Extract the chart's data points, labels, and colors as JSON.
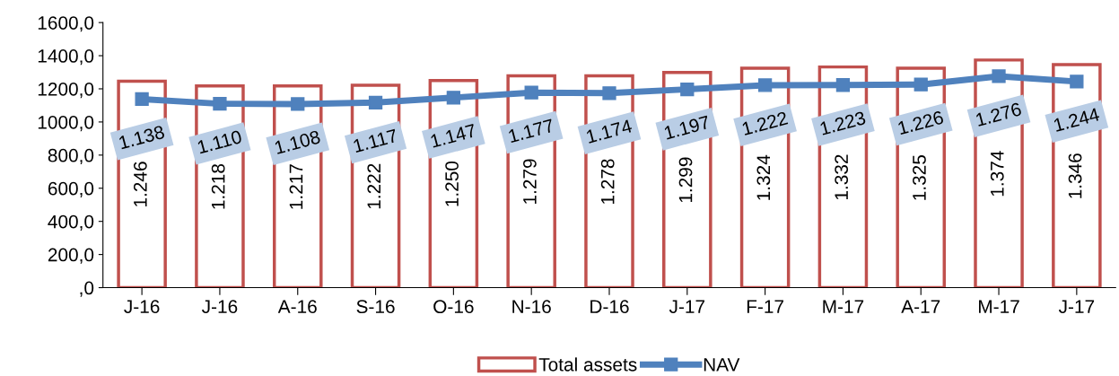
{
  "chart_data": {
    "type": "bar",
    "categories": [
      "J-16",
      "J-16",
      "A-16",
      "S-16",
      "O-16",
      "N-16",
      "D-16",
      "J-17",
      "F-17",
      "M-17",
      "A-17",
      "M-17",
      "J-17"
    ],
    "series": [
      {
        "name": "Total assets",
        "color": "#c0504d",
        "values": [
          1246,
          1218,
          1217,
          1222,
          1250,
          1279,
          1278,
          1299,
          1324,
          1332,
          1325,
          1374,
          1346
        ],
        "value_labels": [
          "1.246",
          "1.218",
          "1.217",
          "1.222",
          "1.250",
          "1.279",
          "1.278",
          "1.299",
          "1.324",
          "1.332",
          "1.325",
          "1.374",
          "1.346"
        ]
      },
      {
        "name": "NAV",
        "type": "line",
        "color": "#4f81bd",
        "marker": "square",
        "values": [
          1138,
          1110,
          1108,
          1117,
          1147,
          1177,
          1174,
          1197,
          1222,
          1223,
          1226,
          1276,
          1244
        ],
        "value_labels": [
          "1.138",
          "1.110",
          "1.108",
          "1.117",
          "1.147",
          "1.177",
          "1.174",
          "1.197",
          "1.222",
          "1.223",
          "1.226",
          "1.276",
          "1.244"
        ]
      }
    ],
    "ylim": [
      0,
      1600
    ],
    "yticks": [
      {
        "value": 0,
        "label": ",0"
      },
      {
        "value": 200,
        "label": "200,0"
      },
      {
        "value": 400,
        "label": "400,0"
      },
      {
        "value": 600,
        "label": "600,0"
      },
      {
        "value": 800,
        "label": "800,0"
      },
      {
        "value": 1000,
        "label": "1000,0"
      },
      {
        "value": 1200,
        "label": "1200,0"
      },
      {
        "value": 1400,
        "label": "1400,0"
      },
      {
        "value": 1600,
        "label": "1600,0"
      }
    ],
    "grid": false,
    "legend": "bottom"
  }
}
